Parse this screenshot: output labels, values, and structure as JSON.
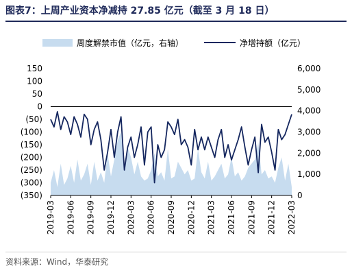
{
  "title": "图表7：上周产业资本净减持 27.85 亿元（截至 3 月 18 日）",
  "source": "资料来源：Wind，华泰研究",
  "colors": {
    "area": "#c7dcef",
    "line": "#15275f",
    "title": "#1f2a5a"
  },
  "chart_data": {
    "type": "line",
    "title": "图表7：上周产业资本净减持 27.85 亿元（截至 3 月 18 日）",
    "legend_position": "top",
    "grid": false,
    "x_tick_labels": [
      "2019-03",
      "2019-06",
      "2019-09",
      "2019-12",
      "2020-03",
      "2020-06",
      "2020-09",
      "2020-12",
      "2021-03",
      "2021-06",
      "2021-09",
      "2021-12",
      "2022-03"
    ],
    "x_range": [
      0,
      36
    ],
    "y_left": {
      "ticks": [
        "150",
        "100",
        "50",
        "0",
        "(50)",
        "(100)",
        "(150)",
        "(200)",
        "(250)",
        "(300)",
        "(350)"
      ],
      "range": [
        -350,
        150
      ]
    },
    "y_right": {
      "ticks": [
        "6,000",
        "5,000",
        "4,000",
        "3,000",
        "2,000",
        "1,000",
        "0"
      ],
      "range": [
        0,
        6000
      ]
    },
    "series": [
      {
        "name": "周度解禁市值（亿元，右轴）",
        "type": "area",
        "axis": "right",
        "x": [
          0.0,
          0.5,
          1.0,
          1.5,
          2.0,
          2.5,
          3.0,
          3.5,
          4.0,
          4.5,
          5.0,
          5.5,
          6.0,
          6.5,
          7.0,
          7.5,
          8.0,
          8.5,
          9.0,
          9.5,
          10.0,
          10.5,
          11.0,
          11.5,
          12.0,
          12.5,
          13.0,
          13.5,
          14.0,
          14.5,
          15.0,
          15.5,
          16.0,
          16.5,
          17.0,
          17.5,
          18.0,
          18.5,
          19.0,
          19.5,
          20.0,
          20.5,
          21.0,
          21.5,
          22.0,
          22.5,
          23.0,
          23.5,
          24.0,
          24.5,
          25.0,
          25.5,
          26.0,
          26.5,
          27.0,
          27.5,
          28.0,
          28.5,
          29.0,
          29.5,
          30.0,
          30.5,
          31.0,
          31.5,
          32.0,
          32.5,
          33.0,
          33.5,
          34.0,
          34.5,
          35.0,
          35.5,
          36.0
        ],
        "values": [
          600,
          1200,
          400,
          1500,
          500,
          800,
          1400,
          600,
          1700,
          700,
          1000,
          1500,
          500,
          1600,
          700,
          1100,
          600,
          2000,
          900,
          1700,
          2600,
          3000,
          1200,
          2300,
          1800,
          1000,
          1600,
          900,
          700,
          800,
          1200,
          2000,
          900,
          1100,
          700,
          2200,
          800,
          900,
          1600,
          1300,
          1000,
          1200,
          700,
          800,
          2200,
          1100,
          800,
          1600,
          700,
          900,
          1200,
          1500,
          800,
          1000,
          1800,
          900,
          1100,
          700,
          900,
          1300,
          1500,
          1700,
          2500,
          1000,
          1200,
          800,
          900,
          600,
          1300,
          1800,
          700,
          1500,
          400
        ]
      },
      {
        "name": "净增持额（亿元）",
        "type": "line",
        "axis": "left",
        "x": [
          0.0,
          0.5,
          1.0,
          1.5,
          2.0,
          2.5,
          3.0,
          3.5,
          4.0,
          4.5,
          5.0,
          5.5,
          6.0,
          6.5,
          7.0,
          7.5,
          8.0,
          8.5,
          9.0,
          9.5,
          10.0,
          10.5,
          11.0,
          11.5,
          12.0,
          12.5,
          13.0,
          13.5,
          14.0,
          14.5,
          15.0,
          15.5,
          16.0,
          16.5,
          17.0,
          17.5,
          18.0,
          18.5,
          19.0,
          19.5,
          20.0,
          20.5,
          21.0,
          21.5,
          22.0,
          22.5,
          23.0,
          23.5,
          24.0,
          24.5,
          25.0,
          25.5,
          26.0,
          26.5,
          27.0,
          27.5,
          28.0,
          28.5,
          29.0,
          29.5,
          30.0,
          30.5,
          31.0,
          31.5,
          32.0,
          32.5,
          33.0,
          33.5,
          34.0,
          34.5,
          35.0,
          35.5,
          36.0
        ],
        "values": [
          -50,
          -80,
          -20,
          -90,
          -40,
          -60,
          -110,
          -40,
          -70,
          -120,
          -30,
          -50,
          -150,
          -90,
          -60,
          -130,
          -250,
          -180,
          -90,
          -200,
          -100,
          -40,
          -250,
          -160,
          -120,
          -200,
          -150,
          -80,
          -230,
          -100,
          -80,
          -300,
          -150,
          -200,
          -170,
          -60,
          -80,
          -110,
          -50,
          -150,
          -130,
          -160,
          -230,
          -90,
          -170,
          -120,
          -170,
          -120,
          -160,
          -200,
          -130,
          -90,
          -200,
          -150,
          -210,
          -170,
          -130,
          -80,
          -160,
          -230,
          -170,
          -120,
          -260,
          -70,
          -140,
          -120,
          -180,
          -250,
          -90,
          -130,
          -110,
          -70,
          -30
        ]
      }
    ]
  }
}
